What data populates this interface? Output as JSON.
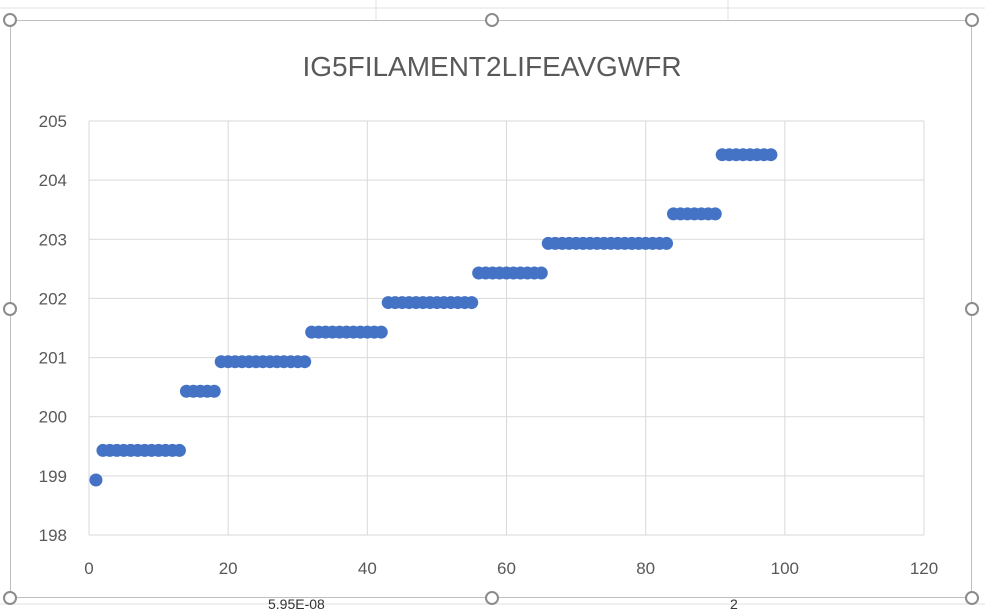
{
  "chart_data": {
    "type": "scatter",
    "title": "IG5FILAMENT2LIFEAVGWFR",
    "xlim": [
      0,
      120
    ],
    "ylim": [
      198,
      205
    ],
    "xticks": [
      0,
      20,
      40,
      60,
      80,
      100,
      120
    ],
    "yticks": [
      198,
      199,
      200,
      201,
      202,
      203,
      204,
      205
    ],
    "grid": true,
    "legend": "none",
    "marker_color": "#4472C4",
    "series": [
      {
        "x": [
          1,
          2,
          3,
          4,
          5,
          6,
          7,
          8,
          9,
          10,
          11,
          12,
          13,
          14,
          15,
          16,
          17,
          18,
          19,
          20,
          21,
          22,
          23,
          24,
          25,
          26,
          27,
          28,
          29,
          30,
          31,
          32,
          33,
          34,
          35,
          36,
          37,
          38,
          39,
          40,
          41,
          42,
          43,
          44,
          45,
          46,
          47,
          48,
          49,
          50,
          51,
          52,
          53,
          54,
          55,
          56,
          57,
          58,
          59,
          60,
          61,
          62,
          63,
          64,
          65,
          66,
          67,
          68,
          69,
          70,
          71,
          72,
          73,
          74,
          75,
          76,
          77,
          78,
          79,
          80,
          81,
          82,
          83,
          84,
          85,
          86,
          87,
          88,
          89,
          90,
          91,
          92,
          93,
          94,
          95,
          96,
          97,
          98
        ],
        "y": [
          198.93,
          199.43,
          199.43,
          199.43,
          199.43,
          199.43,
          199.43,
          199.43,
          199.43,
          199.43,
          199.43,
          199.43,
          199.43,
          200.43,
          200.43,
          200.43,
          200.43,
          200.43,
          200.93,
          200.93,
          200.93,
          200.93,
          200.93,
          200.93,
          200.93,
          200.93,
          200.93,
          200.93,
          200.93,
          200.93,
          200.93,
          201.43,
          201.43,
          201.43,
          201.43,
          201.43,
          201.43,
          201.43,
          201.43,
          201.43,
          201.43,
          201.43,
          201.93,
          201.93,
          201.93,
          201.93,
          201.93,
          201.93,
          201.93,
          201.93,
          201.93,
          201.93,
          201.93,
          201.93,
          201.93,
          202.43,
          202.43,
          202.43,
          202.43,
          202.43,
          202.43,
          202.43,
          202.43,
          202.43,
          202.43,
          202.93,
          202.93,
          202.93,
          202.93,
          202.93,
          202.93,
          202.93,
          202.93,
          202.93,
          202.93,
          202.93,
          202.93,
          202.93,
          202.93,
          202.93,
          202.93,
          202.93,
          202.93,
          203.43,
          203.43,
          203.43,
          203.43,
          203.43,
          203.43,
          203.43,
          204.43,
          204.43,
          204.43,
          204.43,
          204.43,
          204.43,
          204.43,
          204.43
        ]
      }
    ]
  },
  "sheet": {
    "cell_fragment_left": "5.95E-08",
    "cell_fragment_right": "2"
  }
}
